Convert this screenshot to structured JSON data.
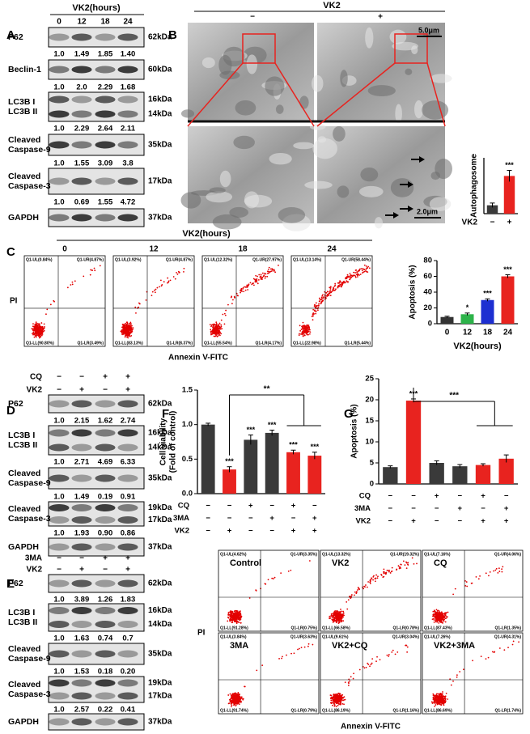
{
  "panel_letters": [
    "A",
    "B",
    "C",
    "D",
    "E",
    "F",
    "G"
  ],
  "panel_a": {
    "header": "VK2(hours)",
    "lanes": [
      "0",
      "12",
      "18",
      "24"
    ],
    "blots": [
      {
        "labels": [
          "P62"
        ],
        "sizes": [
          "62kDa"
        ],
        "quant": [
          "1.0",
          "1.49",
          "1.85",
          "1.40"
        ]
      },
      {
        "labels": [
          "Beclin-1"
        ],
        "sizes": [
          "60kDa"
        ],
        "quant": [
          "1.0",
          "2.0",
          "2.29",
          "1.68"
        ]
      },
      {
        "labels": [
          "LC3B I",
          "LC3B II"
        ],
        "sizes": [
          "16kDa",
          "14kDa"
        ],
        "quant": [
          "1.0",
          "2.29",
          "2.64",
          "2.11"
        ]
      },
      {
        "labels": [
          "Cleaved",
          "Caspase-9"
        ],
        "sizes": [
          "35kDa"
        ],
        "quant": [
          "1.0",
          "1.55",
          "3.09",
          "3.8"
        ]
      },
      {
        "labels": [
          "Cleaved",
          "Caspase-3"
        ],
        "sizes": [
          "17kDa"
        ],
        "quant": [
          "1.0",
          "0.69",
          "1.55",
          "4.72"
        ]
      },
      {
        "labels": [
          "GAPDH"
        ],
        "sizes": [
          "37kDa"
        ]
      }
    ]
  },
  "panel_b": {
    "header": "VK2",
    "conditions": [
      "−",
      "+"
    ],
    "scale_bars": [
      "5.0μm",
      "2.0μm"
    ]
  },
  "panel_c": {
    "header": "VK2(hours)",
    "lanes": [
      "0",
      "12",
      "18",
      "24"
    ],
    "y_label": "PI",
    "x_label": "Annexin V-FITC",
    "plots": [
      {
        "quadrants": [
          "Q1-UL(0.84%)",
          "Q1-UR(4.87%)",
          "Q1-LL(90.80%)",
          "Q1-LR(3.49%)"
        ]
      },
      {
        "quadrants": [
          "Q1-UL(3.92%)",
          "Q1-UR(4.87%)",
          "Q1-LL(83.13%)",
          "Q1-LR(8.37%)"
        ]
      },
      {
        "quadrants": [
          "Q1-UL(12.32%)",
          "Q1-UR(27.97%)",
          "Q1-LL(55.54%)",
          "Q1-LR(4.17%)"
        ]
      },
      {
        "quadrants": [
          "Q1-UL(13.14%)",
          "Q1-UR(58.44%)",
          "Q1-LL(22.98%)",
          "Q1-LR(5.44%)"
        ]
      }
    ]
  },
  "panel_d": {
    "treatments": [
      {
        "name": "CQ",
        "signs": [
          "−",
          "−",
          "+",
          "+"
        ]
      },
      {
        "name": "VK2",
        "signs": [
          "−",
          "+",
          "−",
          "+"
        ]
      }
    ],
    "blots": [
      {
        "labels": [
          "P62"
        ],
        "sizes": [
          "62kDa"
        ],
        "quant": [
          "1.0",
          "2.15",
          "1.62",
          "2.74"
        ]
      },
      {
        "labels": [
          "LC3B I",
          "LC3B II"
        ],
        "sizes": [
          "16kDa",
          "14kDa"
        ],
        "quant": [
          "1.0",
          "2.71",
          "4.69",
          "6.33"
        ]
      },
      {
        "labels": [
          "Cleaved",
          "Caspase-9"
        ],
        "sizes": [
          "35kDa"
        ],
        "quant": [
          "1.0",
          "1.49",
          "0.19",
          "0.91"
        ]
      },
      {
        "labels": [
          "Cleaved",
          "Caspase-3"
        ],
        "sizes": [
          "19kDa",
          "17kDa"
        ],
        "quant": [
          "1.0",
          "1.93",
          "0.90",
          "0.86"
        ]
      },
      {
        "labels": [
          "GAPDH"
        ],
        "sizes": [
          "37kDa"
        ]
      }
    ]
  },
  "panel_e": {
    "treatments": [
      {
        "name": "3MA",
        "signs": [
          "−",
          "−",
          "+",
          "+"
        ]
      },
      {
        "name": "VK2",
        "signs": [
          "−",
          "+",
          "−",
          "+"
        ]
      }
    ],
    "blots": [
      {
        "labels": [
          "P62"
        ],
        "sizes": [
          "62kDa"
        ],
        "quant": [
          "1.0",
          "3.89",
          "1.26",
          "1.83"
        ]
      },
      {
        "labels": [
          "LC3B I",
          "LC3B II"
        ],
        "sizes": [
          "16kDa",
          "14kDa"
        ],
        "quant": [
          "1.0",
          "1.63",
          "0.74",
          "0.7"
        ]
      },
      {
        "labels": [
          "Cleaved",
          "Caspase-9"
        ],
        "sizes": [
          "35kDa"
        ],
        "quant": [
          "1.0",
          "1.53",
          "0.18",
          "0.20"
        ]
      },
      {
        "labels": [
          "Cleaved",
          "Caspase-3"
        ],
        "sizes": [
          "19kDa",
          "17kDa"
        ],
        "quant": [
          "1.0",
          "2.57",
          "0.22",
          "0.41"
        ]
      },
      {
        "labels": [
          "GAPDH"
        ],
        "sizes": [
          "37kDa"
        ]
      }
    ]
  },
  "flow_grid": {
    "y_label": "PI",
    "x_label": "Annexin V-FITC",
    "plots": [
      {
        "label": "Control",
        "quadrants": [
          "Q1-UL(4.62%)",
          "Q1-UR(3.35%)",
          "Q1-LL(91.28%)",
          "Q1-LR(0.75%)"
        ]
      },
      {
        "label": "VK2",
        "quadrants": [
          "Q1-UL(13.32%)",
          "Q1-UR(19.32%)",
          "Q1-LL(66.58%)",
          "Q1-LR(0.78%)"
        ]
      },
      {
        "label": "CQ",
        "quadrants": [
          "Q1-UL(7.16%)",
          "Q1-UR(4.06%)",
          "Q1-LL(87.43%)",
          "Q1-LR(1.35%)"
        ]
      },
      {
        "label": "3MA",
        "quadrants": [
          "Q1-UL(3.84%)",
          "Q1-UR(3.63%)",
          "Q1-LL(91.74%)",
          "Q1-LR(0.79%)"
        ]
      },
      {
        "label": "VK2+CQ",
        "quadrants": [
          "Q1-UL(9.61%)",
          "Q1-UR(3.04%)",
          "Q1-LL(86.19%)",
          "Q1-LR(1.16%)"
        ]
      },
      {
        "label": "VK2+3MA",
        "quadrants": [
          "Q1-UL(7.26%)",
          "Q1-UR(4.31%)",
          "Q1-LL(86.69%)",
          "Q1-LR(1.74%)"
        ]
      }
    ]
  },
  "chart_data": [
    {
      "type": "bar",
      "y_label": "Autophagosome",
      "x_label": "VK2",
      "categories": [
        "−",
        "+"
      ],
      "values": [
        3,
        13.5
      ],
      "errors": [
        0.8,
        2.0
      ],
      "colors": [
        "#3a3a3a",
        "#e8231f"
      ],
      "annotations": [
        null,
        "***"
      ],
      "ylim": [
        0,
        20
      ]
    },
    {
      "type": "bar",
      "y_label": "Apoptosis (%)",
      "x_label": "VK2(hours)",
      "categories": [
        "0",
        "12",
        "18",
        "24"
      ],
      "values": [
        8.5,
        12,
        30,
        60
      ],
      "errors": [
        1,
        1.5,
        1.5,
        2
      ],
      "colors": [
        "#333333",
        "#2db34a",
        "#1d2fd1",
        "#e8231f"
      ],
      "annotations": [
        null,
        "*",
        "***",
        "***"
      ],
      "ylim": [
        0,
        80
      ],
      "yticks": [
        0,
        20,
        40,
        60,
        80
      ]
    },
    {
      "type": "bar",
      "y_label": [
        "Cell viability",
        "(Fold of control)"
      ],
      "conditions": [
        {
          "name": "CQ",
          "signs": [
            "−",
            "−",
            "+",
            "−",
            "+",
            "−"
          ]
        },
        {
          "name": "3MA",
          "signs": [
            "−",
            "−",
            "−",
            "+",
            "−",
            "+"
          ]
        },
        {
          "name": "VK2",
          "signs": [
            "−",
            "+",
            "−",
            "−",
            "+",
            "+"
          ]
        }
      ],
      "values": [
        1.0,
        0.35,
        0.78,
        0.88,
        0.6,
        0.55
      ],
      "errors": [
        0.02,
        0.04,
        0.07,
        0.04,
        0.03,
        0.05
      ],
      "colors": [
        "#3a3a3a",
        "#e8231f",
        "#3a3a3a",
        "#3a3a3a",
        "#e8231f",
        "#e8231f"
      ],
      "annotations": [
        null,
        "***",
        "***",
        "***",
        "***",
        "***"
      ],
      "bracket_label": "**",
      "ylim": [
        0,
        1.5
      ],
      "yticks": [
        {
          "value": 0,
          "label": "0.0"
        },
        0.5,
        {
          "value": 1,
          "label": "1.0"
        },
        1.5
      ]
    },
    {
      "type": "bar",
      "y_label": "Apoptosis (%)",
      "conditions": [
        {
          "name": "CQ",
          "signs": [
            "−",
            "−",
            "+",
            "−",
            "+",
            "−"
          ]
        },
        {
          "name": "3MA",
          "signs": [
            "−",
            "−",
            "−",
            "+",
            "−",
            "+"
          ]
        },
        {
          "name": "VK2",
          "signs": [
            "−",
            "+",
            "−",
            "−",
            "+",
            "+"
          ]
        }
      ],
      "values": [
        4,
        19.8,
        5,
        4.2,
        4.5,
        6
      ],
      "errors": [
        0.3,
        0.4,
        0.5,
        0.4,
        0.3,
        0.9
      ],
      "colors": [
        "#3a3a3a",
        "#e8231f",
        "#3a3a3a",
        "#3a3a3a",
        "#e8231f",
        "#e8231f"
      ],
      "annotations": [
        null,
        "***",
        null,
        null,
        null,
        null
      ],
      "bracket_label": "***",
      "ylim": [
        0,
        25
      ],
      "yticks": [
        0,
        5,
        10,
        15,
        20,
        25
      ]
    }
  ]
}
